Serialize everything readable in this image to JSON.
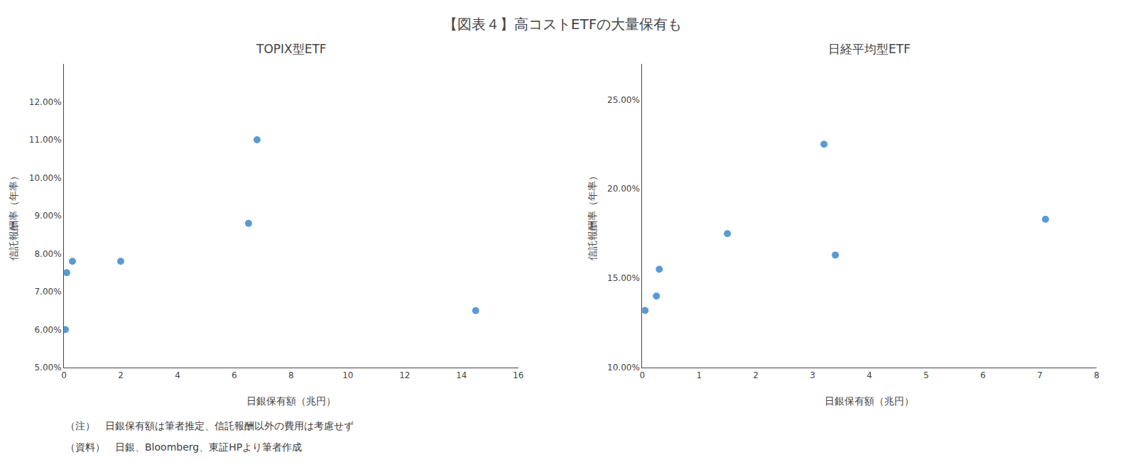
{
  "title": "【図表４】高コストETFの大量保有も",
  "annotations": [
    "（注）　日銀保有額は筆者推定、信託報酬以外の費用は考慮せず",
    "（資料）　日銀、Bloomberg、東証HPより筆者作成"
  ],
  "chart_data": [
    {
      "type": "scatter",
      "title": "TOPIX型ETF",
      "xlabel": "日銀保有額（兆円）",
      "ylabel": "信託報酬率（年率）",
      "x": [
        0.05,
        0.1,
        0.3,
        2.0,
        6.5,
        6.8,
        14.5
      ],
      "values": [
        0.06,
        0.075,
        0.078,
        0.078,
        0.088,
        0.11,
        0.065
      ],
      "color": "#5b9bd5",
      "marker": "circle",
      "xlim": [
        0,
        16
      ],
      "xticks": [
        0,
        2,
        4,
        6,
        8,
        10,
        12,
        14,
        16
      ],
      "ylim": [
        0.05,
        0.13
      ],
      "yticks": [
        {
          "value": 0.05,
          "label": "5.00%"
        },
        {
          "value": 0.06,
          "label": "6.00%"
        },
        {
          "value": 0.07,
          "label": "7.00%"
        },
        {
          "value": 0.08,
          "label": "8.00%"
        },
        {
          "value": 0.09,
          "label": "9.00%"
        },
        {
          "value": 0.1,
          "label": "10.00%"
        },
        {
          "value": 0.11,
          "label": "11.00%"
        },
        {
          "value": 0.12,
          "label": "12.00%"
        }
      ],
      "grid": false
    },
    {
      "type": "scatter",
      "title": "日経平均型ETF",
      "xlabel": "日銀保有額（兆円）",
      "ylabel": "信託報酬率（年率）",
      "x": [
        0.05,
        0.25,
        0.3,
        1.5,
        3.2,
        3.4,
        7.1
      ],
      "values": [
        0.132,
        0.14,
        0.155,
        0.175,
        0.225,
        0.163,
        0.183
      ],
      "color": "#5b9bd5",
      "marker": "circle",
      "xlim": [
        0,
        8
      ],
      "xticks": [
        0,
        1,
        2,
        3,
        4,
        5,
        6,
        7,
        8
      ],
      "ylim": [
        0.1,
        0.27
      ],
      "yticks": [
        {
          "value": 0.1,
          "label": "10.00%"
        },
        {
          "value": 0.15,
          "label": "15.00%"
        },
        {
          "value": 0.2,
          "label": "20.00%"
        },
        {
          "value": 0.25,
          "label": "25.00%"
        }
      ],
      "grid": false
    }
  ]
}
